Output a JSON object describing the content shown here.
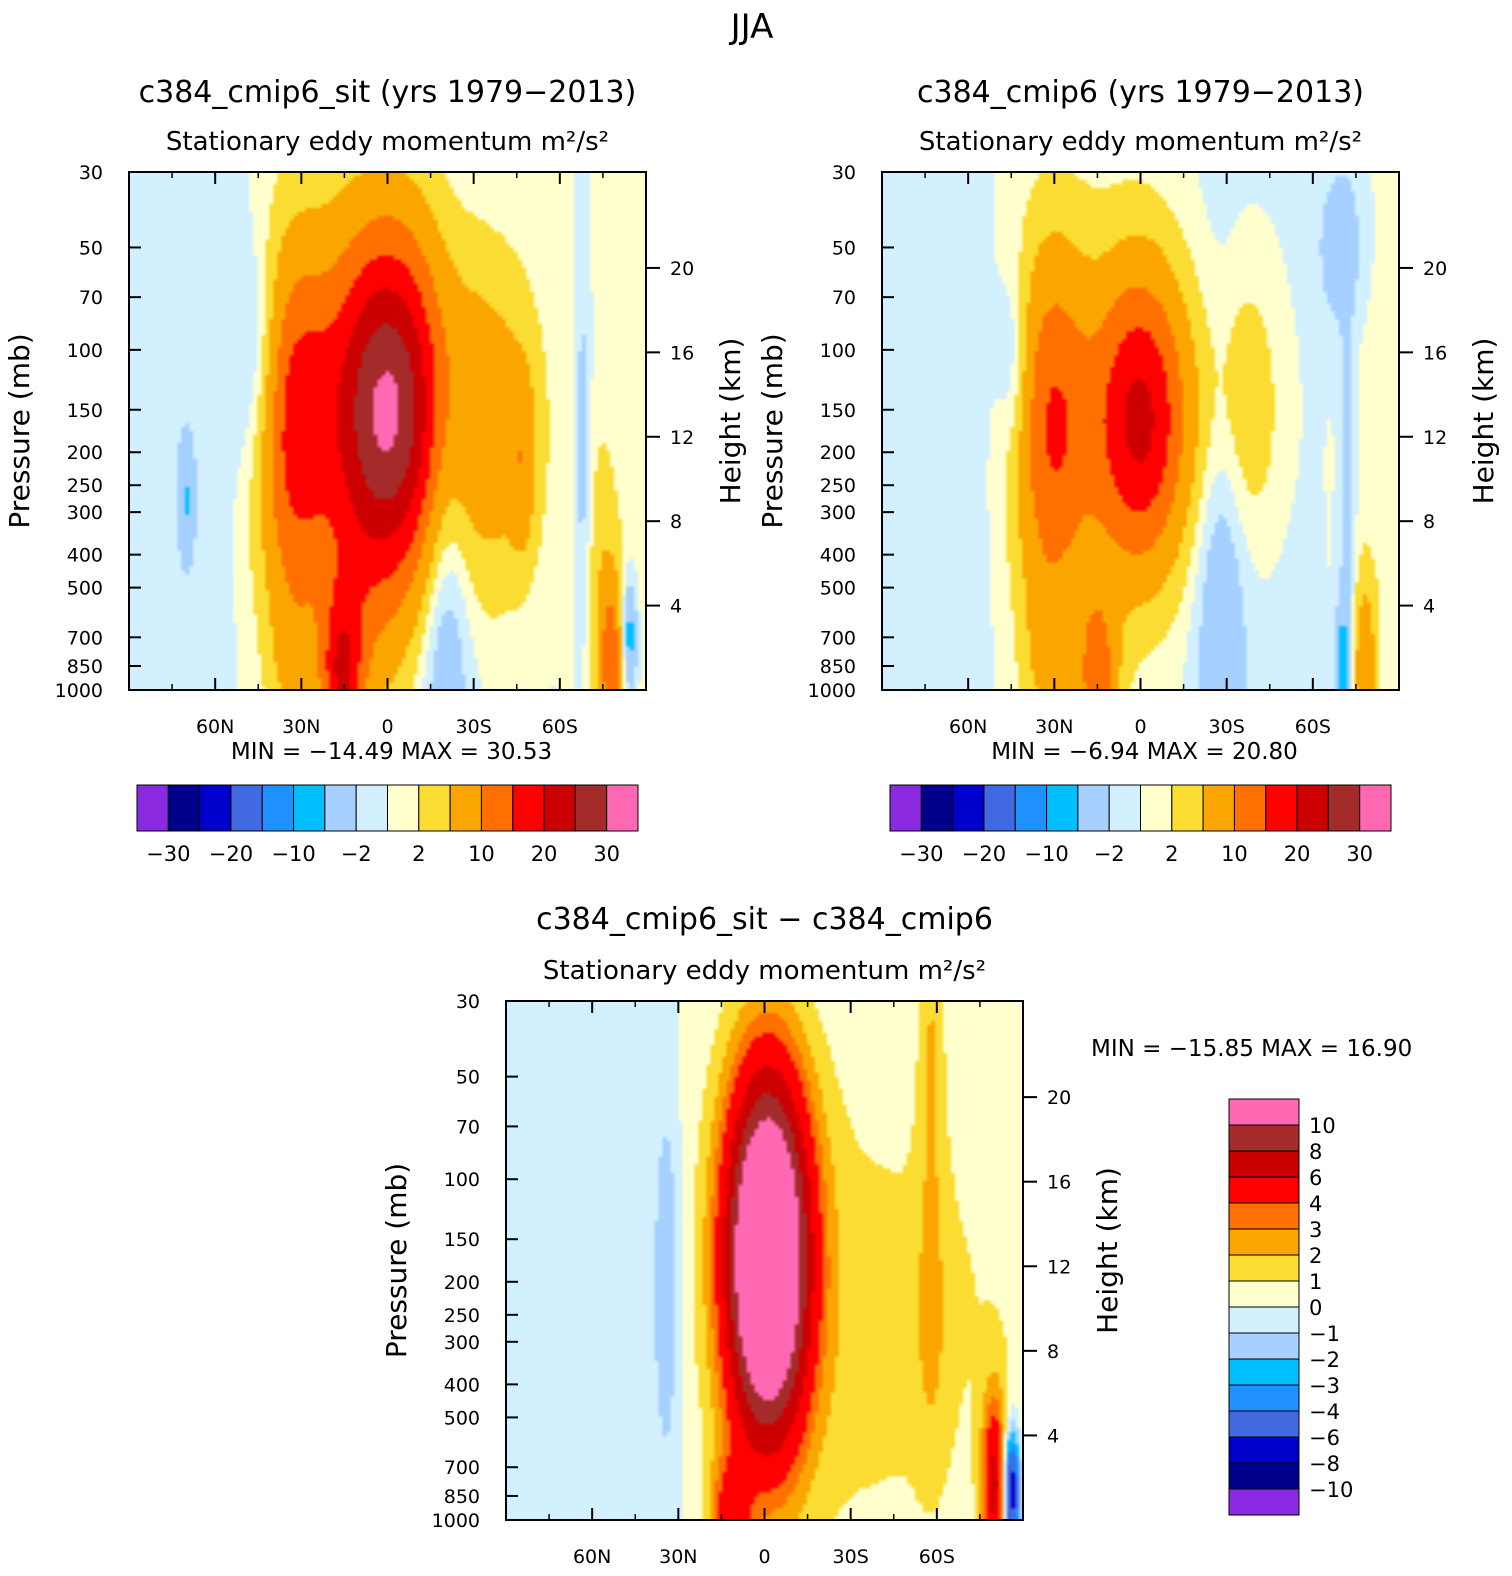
{
  "figure": {
    "title": "JJA",
    "pressure_label": "Pressure (mb)",
    "height_label": "Height (km)"
  },
  "chart_data": [
    {
      "type": "heatmap",
      "id": "p1",
      "title": "c384_cmip6_sit (yrs 1979−2013)",
      "subtitle": "Stationary eddy momentum",
      "units": "m²/s²",
      "xlabel": "",
      "ylabel": "Pressure (mb)",
      "y2label": "Height (km)",
      "x_range": [
        90,
        -90
      ],
      "x_ticks": [
        {
          "v": 60,
          "label": "60N"
        },
        {
          "v": 30,
          "label": "30N"
        },
        {
          "v": 0,
          "label": "0"
        },
        {
          "v": -30,
          "label": "30S"
        },
        {
          "v": -60,
          "label": "60S"
        }
      ],
      "pressure_range": [
        30,
        1000
      ],
      "pressure_ticks": [
        "30",
        "50",
        "70",
        "100",
        "150",
        "200",
        "250",
        "300",
        "400",
        "500",
        "700",
        "850",
        "1000"
      ],
      "height_ticks": [
        "20",
        "16",
        "12",
        "8",
        "4"
      ],
      "min_label": "MIN = −14.49",
      "max_label": "MAX = 30.53",
      "colorbar": {
        "colors": [
          "#8a2be2",
          "#00008b",
          "#0000cd",
          "#4169e1",
          "#1e90ff",
          "#00bfff",
          "#a6d0ff",
          "#d2f0ff",
          "#ffffcd",
          "#fbdc32",
          "#fba600",
          "#ff7000",
          "#ff0000",
          "#cc0000",
          "#a52a2a",
          "#ff69b4"
        ],
        "labels": [
          "−30",
          "−20",
          "−10",
          "−2",
          "2",
          "10",
          "20",
          "30"
        ]
      },
      "features": [
        {
          "lat": 45,
          "p": 110,
          "sx": 6,
          "sz": 4,
          "amp": -5
        },
        {
          "lat": 0,
          "p": 150,
          "sx": 15,
          "sz": 6,
          "amp": 30.5
        },
        {
          "lat": 33,
          "p": 170,
          "sx": 9,
          "sz": 6,
          "amp": 15
        },
        {
          "lat": -38,
          "p": 170,
          "sx": 12,
          "sz": 6,
          "amp": 8
        },
        {
          "lat": -47,
          "p": 220,
          "sx": 3,
          "sz": 3,
          "amp": 5
        },
        {
          "lat": -20,
          "p": 500,
          "sx": 6,
          "sz": 8,
          "amp": -6
        },
        {
          "lat": 16,
          "p": 950,
          "sx": 5,
          "sz": 3,
          "amp": 16
        },
        {
          "lat": 10,
          "p": 700,
          "sx": 9,
          "sz": 4,
          "amp": 4
        },
        {
          "lat": 33,
          "p": 850,
          "sx": 6,
          "sz": 3,
          "amp": 4
        },
        {
          "lat": -78,
          "p": 850,
          "sx": 3,
          "sz": 3,
          "amp": 12
        },
        {
          "lat": -84,
          "p": 700,
          "sx": 2,
          "sz": 2,
          "amp": -8
        },
        {
          "lat": -74,
          "p": 480,
          "sx": 4,
          "sz": 5,
          "amp": 3
        },
        {
          "lat": -68,
          "p": 200,
          "sx": 2,
          "sz": 6,
          "amp": -4
        },
        {
          "lat": 70,
          "p": 280,
          "sx": 2,
          "sz": 2,
          "amp": -4
        }
      ]
    },
    {
      "type": "heatmap",
      "id": "p2",
      "title": "c384_cmip6 (yrs 1979−2013)",
      "subtitle": "Stationary eddy momentum",
      "units": "m²/s²",
      "xlabel": "",
      "ylabel": "Pressure (mb)",
      "y2label": "Height (km)",
      "x_range": [
        90,
        -90
      ],
      "x_ticks": [
        {
          "v": 60,
          "label": "60N"
        },
        {
          "v": 30,
          "label": "30N"
        },
        {
          "v": 0,
          "label": "0"
        },
        {
          "v": -30,
          "label": "30S"
        },
        {
          "v": -60,
          "label": "60S"
        }
      ],
      "pressure_range": [
        30,
        1000
      ],
      "pressure_ticks": [
        "30",
        "50",
        "70",
        "100",
        "150",
        "200",
        "250",
        "300",
        "400",
        "500",
        "700",
        "850",
        "1000"
      ],
      "height_ticks": [
        "20",
        "16",
        "12",
        "8",
        "4"
      ],
      "min_label": "MIN = −6.94",
      "max_label": "MAX = 20.80",
      "colorbar": {
        "colors": [
          "#8a2be2",
          "#00008b",
          "#0000cd",
          "#4169e1",
          "#1e90ff",
          "#00bfff",
          "#a6d0ff",
          "#d2f0ff",
          "#ffffcd",
          "#fbdc32",
          "#fba600",
          "#ff7000",
          "#ff0000",
          "#cc0000",
          "#a52a2a",
          "#ff69b4"
        ],
        "labels": [
          "−30",
          "−20",
          "−10",
          "−2",
          "2",
          "10",
          "20",
          "30"
        ]
      },
      "features": [
        {
          "lat": 44,
          "p": 110,
          "sx": 4,
          "sz": 3,
          "amp": -4
        },
        {
          "lat": 0,
          "p": 160,
          "sx": 12,
          "sz": 5,
          "amp": 20.8
        },
        {
          "lat": 31,
          "p": 170,
          "sx": 9,
          "sz": 6,
          "amp": 14
        },
        {
          "lat": -35,
          "p": 150,
          "sx": 10,
          "sz": 5,
          "amp": 6
        },
        {
          "lat": -28,
          "p": 500,
          "sx": 6,
          "sz": 9,
          "amp": -5
        },
        {
          "lat": -70,
          "p": 50,
          "sx": 6,
          "sz": 3,
          "amp": -4
        },
        {
          "lat": 15,
          "p": 950,
          "sx": 5,
          "sz": 3,
          "amp": 12
        },
        {
          "lat": 33,
          "p": 850,
          "sx": 6,
          "sz": 3,
          "amp": 4
        },
        {
          "lat": -78,
          "p": 850,
          "sx": 3,
          "sz": 3,
          "amp": 8
        },
        {
          "lat": -70,
          "p": 850,
          "sx": 2,
          "sz": 2,
          "amp": -6
        },
        {
          "lat": -72,
          "p": 300,
          "sx": 2,
          "sz": 6,
          "amp": -4
        }
      ]
    },
    {
      "type": "heatmap",
      "id": "p3",
      "title": "c384_cmip6_sit − c384_cmip6",
      "subtitle": "Stationary eddy momentum",
      "units": "m²/s²",
      "xlabel": "",
      "ylabel": "Pressure (mb)",
      "y2label": "Height (km)",
      "x_range": [
        90,
        -90
      ],
      "x_ticks": [
        {
          "v": 60,
          "label": "60N"
        },
        {
          "v": 30,
          "label": "30N"
        },
        {
          "v": 0,
          "label": "0"
        },
        {
          "v": -30,
          "label": "30S"
        },
        {
          "v": -60,
          "label": "60S"
        }
      ],
      "pressure_range": [
        30,
        1000
      ],
      "pressure_ticks": [
        "30",
        "50",
        "70",
        "100",
        "150",
        "200",
        "250",
        "300",
        "400",
        "500",
        "700",
        "850",
        "1000"
      ],
      "height_ticks": [
        "20",
        "16",
        "12",
        "8",
        "4"
      ],
      "min_label": "MIN = −15.85",
      "max_label": "MAX = 16.90",
      "colorbar": {
        "colors": [
          "#8a2be2",
          "#00008b",
          "#0000cd",
          "#4169e1",
          "#1e90ff",
          "#00bfff",
          "#a6d0ff",
          "#d2f0ff",
          "#ffffcd",
          "#fbdc32",
          "#fba600",
          "#ff7000",
          "#ff0000",
          "#cc0000",
          "#a52a2a",
          "#ff69b4"
        ],
        "labels": [
          "−10",
          "−8",
          "−6",
          "−4",
          "−3",
          "−2",
          "−1",
          "0",
          "1",
          "2",
          "3",
          "4",
          "6",
          "8",
          "10"
        ]
      },
      "features": [
        {
          "lat": -1,
          "p": 170,
          "sx": 10,
          "sz": 6,
          "amp": 16.9
        },
        {
          "lat": -35,
          "p": 250,
          "sx": 35,
          "sz": 10,
          "amp": 1.6
        },
        {
          "lat": -58,
          "p": 250,
          "sx": 4,
          "sz": 5,
          "amp": 1.3
        },
        {
          "lat": -58,
          "p": 40,
          "sx": 3,
          "sz": 5,
          "amp": 1.6
        },
        {
          "lat": 34,
          "p": 200,
          "sx": 3,
          "sz": 6,
          "amp": -2
        },
        {
          "lat": 55,
          "p": 300,
          "sx": 18,
          "sz": 12,
          "amp": -0.8
        },
        {
          "lat": 12,
          "p": 980,
          "sx": 5,
          "sz": 2,
          "amp": 4
        },
        {
          "lat": -80,
          "p": 800,
          "sx": 3,
          "sz": 3,
          "amp": 6
        },
        {
          "lat": -86,
          "p": 820,
          "sx": 2,
          "sz": 2,
          "amp": -8
        }
      ]
    }
  ]
}
